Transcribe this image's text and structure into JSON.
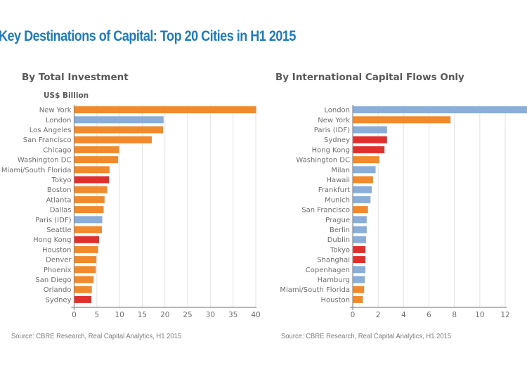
{
  "title": "Key Destinations of Capital: Top 20 Cities in H1 2015",
  "colors": {
    "title": "#1f7bbf",
    "americas": "#f08a2c",
    "emea": "#8aaed8",
    "apac": "#e0302e",
    "grid": "#e2e2e2",
    "axis": "#8c8c8c",
    "label": "#6e6e6e"
  },
  "source_left": "Source: CBRE Research, Real Capital Analytics, H1 2015",
  "source_right": "Source: CBRE Research, Real Capital Analytics, H1 2015",
  "chart_data": [
    {
      "type": "bar",
      "orientation": "horizontal",
      "title": "By Total Investment",
      "unit_label": "US$ Billion",
      "xlabel": "",
      "ylabel": "",
      "xlim": [
        0,
        40
      ],
      "xticks": [
        0,
        5,
        10,
        15,
        20,
        25,
        30,
        35,
        40
      ],
      "grid": true,
      "categories": [
        "New York",
        "London",
        "Los Angeles",
        "San Francisco",
        "Chicago",
        "Washington DC",
        "Miami/South Florida",
        "Tokyo",
        "Boston",
        "Atlanta",
        "Dallas",
        "Paris (IDF)",
        "Seattle",
        "Hong Kong",
        "Houston",
        "Denver",
        "Phoenix",
        "San Diego",
        "Orlando",
        "Sydney"
      ],
      "values": [
        40.1,
        19.7,
        19.6,
        17.1,
        9.9,
        9.7,
        7.8,
        7.7,
        7.3,
        6.7,
        6.5,
        6.2,
        6.1,
        5.5,
        5.3,
        4.9,
        4.8,
        4.3,
        3.9,
        3.8
      ],
      "regions": [
        "americas",
        "emea",
        "americas",
        "americas",
        "americas",
        "americas",
        "americas",
        "apac",
        "americas",
        "americas",
        "americas",
        "emea",
        "americas",
        "apac",
        "americas",
        "americas",
        "americas",
        "americas",
        "americas",
        "apac"
      ]
    },
    {
      "type": "bar",
      "orientation": "horizontal",
      "title": "By International Capital Flows Only",
      "unit_label": "",
      "xlabel": "",
      "ylabel": "",
      "xlim": [
        0,
        13.7
      ],
      "xticks": [
        0,
        2,
        4,
        6,
        8,
        10,
        12
      ],
      "grid": true,
      "categories": [
        "London",
        "New York",
        "Paris (IDF)",
        "Sydney",
        "Hong Kong",
        "Washington DC",
        "Milan",
        "Hawaii",
        "Frankfurt",
        "Munich",
        "San Francisco",
        "Prague",
        "Berlin",
        "Dublin",
        "Tokyo",
        "Shanghai",
        "Copenhagen",
        "Hamburg",
        "Miami/South Florida",
        "Houston"
      ],
      "values": [
        13.8,
        7.7,
        2.7,
        2.7,
        2.5,
        2.1,
        1.8,
        1.6,
        1.5,
        1.4,
        1.2,
        1.1,
        1.1,
        1.05,
        1.0,
        1.0,
        1.0,
        0.95,
        0.9,
        0.8
      ],
      "regions": [
        "emea",
        "americas",
        "emea",
        "apac",
        "apac",
        "americas",
        "emea",
        "americas",
        "emea",
        "emea",
        "americas",
        "emea",
        "emea",
        "emea",
        "apac",
        "apac",
        "emea",
        "emea",
        "americas",
        "americas"
      ]
    }
  ]
}
